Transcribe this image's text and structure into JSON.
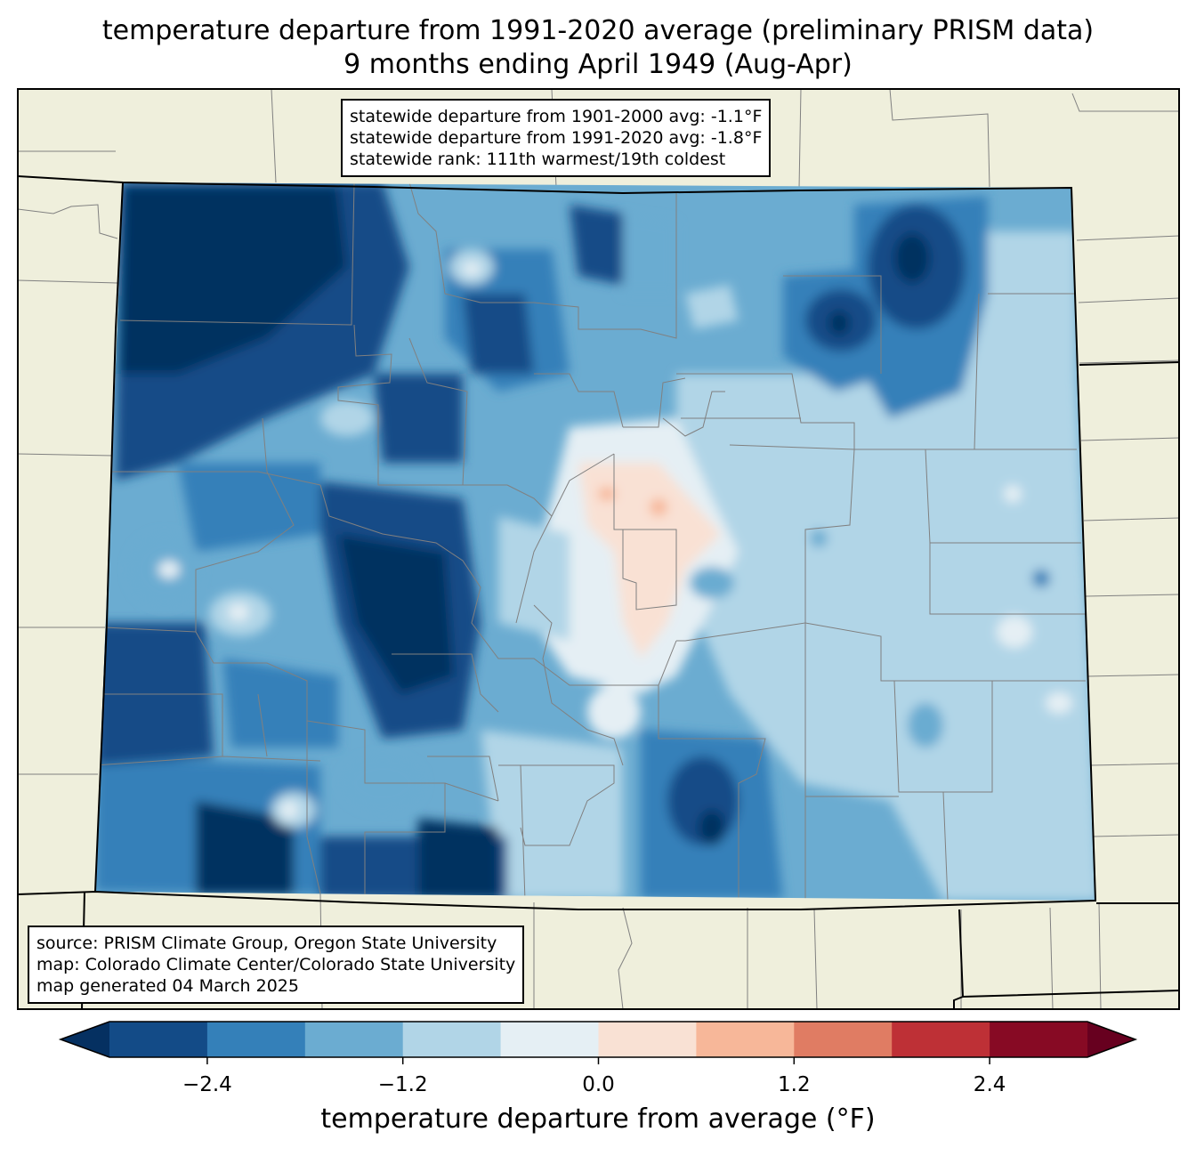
{
  "title": {
    "line1": "temperature departure from 1991-2020 average (preliminary PRISM data)",
    "line2": "9 months ending April 1949 (Aug-Apr)"
  },
  "stats": {
    "line1": "statewide departure from 1901-2000 avg: -1.1°F",
    "line2": "statewide departure from 1991-2020 avg: -1.8°F",
    "line3": "statewide rank: 111th warmest/19th coldest"
  },
  "source": {
    "line1": "source: PRISM Climate Group, Oregon State University",
    "line2": "map: Colorado Climate Center/Colorado State University",
    "line3": "map generated 04 March 2025"
  },
  "colorbar": {
    "label": "temperature departure from average (°F)",
    "ticks": [
      "−2.4",
      "−1.2",
      "0.0",
      "1.2",
      "2.4"
    ],
    "tick_values": [
      -2.4,
      -1.2,
      0.0,
      1.2,
      2.4
    ],
    "range": [
      -3.0,
      3.0
    ],
    "step": 0.6,
    "under_color": "#053061",
    "over_color": "#67001f",
    "colors": [
      "#134b87",
      "#3480b9",
      "#6bacd1",
      "#b1d5e7",
      "#e5eff4",
      "#f9e1d4",
      "#f7b799",
      "#e07c63",
      "#be3036",
      "#870a24"
    ]
  },
  "map_colors": {
    "land": "#efefdc",
    "county_lines": "#808080",
    "state_lines": "#000000"
  }
}
